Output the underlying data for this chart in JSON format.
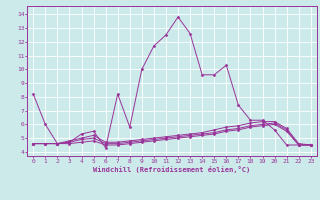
{
  "xlabel": "Windchill (Refroidissement éolien,°C)",
  "background_color": "#cceaea",
  "grid_color": "#b0d8d8",
  "line_color": "#993399",
  "x_ticks": [
    0,
    1,
    2,
    3,
    4,
    5,
    6,
    7,
    8,
    9,
    10,
    11,
    12,
    13,
    14,
    15,
    16,
    17,
    18,
    19,
    20,
    21,
    22,
    23
  ],
  "y_ticks": [
    4,
    5,
    6,
    7,
    8,
    9,
    10,
    11,
    12,
    13,
    14
  ],
  "ylim": [
    3.7,
    14.6
  ],
  "xlim": [
    -0.5,
    23.5
  ],
  "series": [
    {
      "x": [
        0,
        1,
        2,
        3,
        4,
        5,
        6,
        7,
        8,
        9,
        10,
        11,
        12,
        13,
        14,
        15,
        16,
        17,
        18,
        19,
        20,
        21,
        22,
        23
      ],
      "y": [
        8.2,
        6.0,
        4.6,
        4.7,
        5.3,
        5.5,
        4.3,
        8.2,
        5.8,
        10.0,
        11.7,
        12.5,
        13.8,
        12.6,
        9.6,
        9.6,
        10.3,
        7.4,
        6.3,
        6.3,
        5.6,
        4.5,
        4.5,
        4.5
      ]
    },
    {
      "x": [
        0,
        1,
        2,
        3,
        4,
        5,
        6,
        7,
        8,
        9,
        10,
        11,
        12,
        13,
        14,
        15,
        16,
        17,
        18,
        19,
        20,
        21,
        22,
        23
      ],
      "y": [
        4.6,
        4.6,
        4.6,
        4.6,
        4.7,
        4.8,
        4.5,
        4.5,
        4.6,
        4.7,
        4.8,
        4.9,
        5.0,
        5.1,
        5.2,
        5.3,
        5.5,
        5.6,
        5.8,
        5.9,
        6.0,
        5.5,
        4.5,
        4.5
      ]
    },
    {
      "x": [
        0,
        1,
        2,
        3,
        4,
        5,
        6,
        7,
        8,
        9,
        10,
        11,
        12,
        13,
        14,
        15,
        16,
        17,
        18,
        19,
        20,
        21,
        22,
        23
      ],
      "y": [
        4.6,
        4.6,
        4.6,
        4.7,
        4.9,
        5.0,
        4.6,
        4.6,
        4.7,
        4.8,
        4.9,
        5.0,
        5.1,
        5.2,
        5.3,
        5.4,
        5.6,
        5.7,
        5.9,
        6.0,
        6.1,
        5.6,
        4.5,
        4.5
      ]
    },
    {
      "x": [
        0,
        1,
        2,
        3,
        4,
        5,
        6,
        7,
        8,
        9,
        10,
        11,
        12,
        13,
        14,
        15,
        16,
        17,
        18,
        19,
        20,
        21,
        22,
        23
      ],
      "y": [
        4.6,
        4.6,
        4.6,
        4.8,
        5.0,
        5.2,
        4.7,
        4.7,
        4.8,
        4.9,
        5.0,
        5.1,
        5.2,
        5.3,
        5.4,
        5.6,
        5.8,
        5.9,
        6.1,
        6.2,
        6.2,
        5.7,
        4.6,
        4.5
      ]
    }
  ]
}
